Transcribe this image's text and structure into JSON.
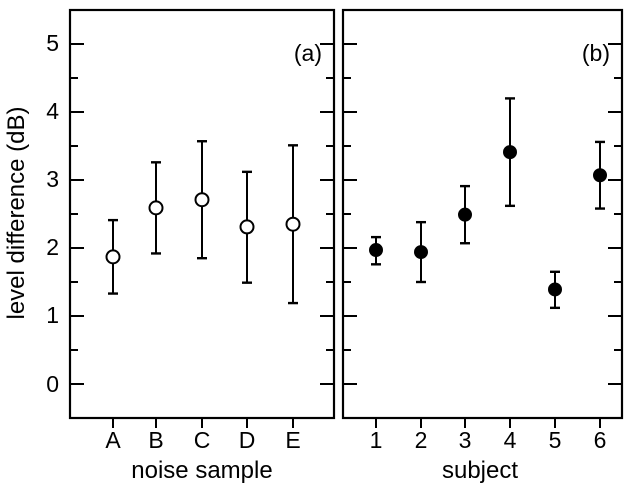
{
  "ylabel": "level difference (dB)",
  "yticks": [
    "0",
    "1",
    "2",
    "3",
    "4",
    "5"
  ],
  "chart_data": [
    {
      "type": "scatter",
      "panel_label": "(a)",
      "xlabel": "noise sample",
      "ylabel": "level difference (dB)",
      "categories": [
        "A",
        "B",
        "C",
        "D",
        "E"
      ],
      "values": [
        1.87,
        2.59,
        2.71,
        2.31,
        2.35
      ],
      "error_low": [
        1.33,
        1.92,
        1.85,
        1.49,
        1.19
      ],
      "error_high": [
        2.41,
        3.26,
        3.57,
        3.12,
        3.51
      ],
      "marker": "open-circle",
      "ylim": [
        -0.5,
        5.5
      ],
      "grid": false
    },
    {
      "type": "scatter",
      "panel_label": "(b)",
      "xlabel": "subject",
      "ylabel": "",
      "categories": [
        "1",
        "2",
        "3",
        "4",
        "5",
        "6"
      ],
      "values": [
        1.97,
        1.94,
        2.49,
        3.41,
        1.39,
        3.07
      ],
      "error_low": [
        1.76,
        1.5,
        2.07,
        2.62,
        1.12,
        2.58
      ],
      "error_high": [
        2.16,
        2.38,
        2.91,
        4.2,
        1.65,
        3.56
      ],
      "marker": "filled-circle",
      "ylim": [
        -0.5,
        5.5
      ],
      "grid": false
    }
  ]
}
